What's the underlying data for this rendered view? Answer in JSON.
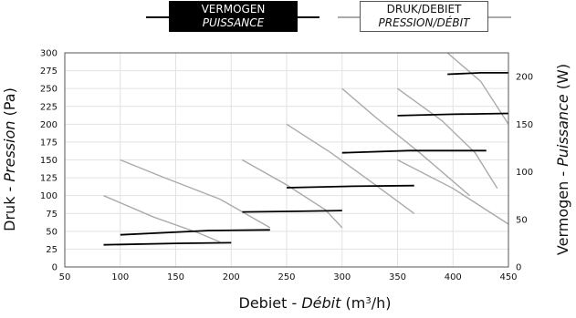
{
  "legend": {
    "power": {
      "line1": "VERMOGEN",
      "line2": "PUISSANCE",
      "color": "#000000"
    },
    "pressure": {
      "line1": "DRUK/DEBIET",
      "line2": "PRESSION/DÉBIT",
      "color": "#aaaaaa"
    }
  },
  "chart_data": {
    "type": "line",
    "xlabel": {
      "main": "Debiet - ",
      "italic": "Débit",
      "unit_pre": " (m",
      "unit_sup": "3",
      "unit_post": "/h)"
    },
    "ylabel_left": {
      "main": "Druk - ",
      "italic": "Pression",
      "unit": " (Pa)"
    },
    "ylabel_right": {
      "main": "Vermogen - ",
      "italic": "Puissance",
      "unit": " (W)"
    },
    "xlim": [
      50,
      450
    ],
    "ylim_left": [
      0,
      300
    ],
    "ylim_right": [
      0,
      225
    ],
    "x_ticks": [
      50,
      100,
      150,
      200,
      250,
      300,
      350,
      400,
      450
    ],
    "y_ticks_left": [
      0,
      25,
      50,
      75,
      100,
      125,
      150,
      175,
      200,
      225,
      250,
      275,
      300
    ],
    "y_ticks_right": [
      0,
      50,
      100,
      150,
      200
    ],
    "grid": true,
    "pressure_series": [
      {
        "points": [
          [
            85,
            100
          ],
          [
            130,
            70
          ],
          [
            170,
            48
          ],
          [
            190,
            35
          ]
        ]
      },
      {
        "points": [
          [
            100,
            150
          ],
          [
            140,
            125
          ],
          [
            190,
            95
          ],
          [
            235,
            55
          ]
        ]
      },
      {
        "points": [
          [
            210,
            150
          ],
          [
            250,
            115
          ],
          [
            285,
            80
          ],
          [
            300,
            55
          ]
        ]
      },
      {
        "points": [
          [
            250,
            200
          ],
          [
            290,
            160
          ],
          [
            330,
            115
          ],
          [
            365,
            75
          ]
        ]
      },
      {
        "points": [
          [
            300,
            250
          ],
          [
            330,
            210
          ],
          [
            370,
            160
          ],
          [
            415,
            100
          ]
        ]
      },
      {
        "points": [
          [
            350,
            250
          ],
          [
            390,
            205
          ],
          [
            420,
            160
          ],
          [
            440,
            110
          ]
        ]
      },
      {
        "points": [
          [
            395,
            300
          ],
          [
            425,
            260
          ],
          [
            450,
            200
          ]
        ]
      },
      {
        "points": [
          [
            350,
            150
          ],
          [
            400,
            110
          ],
          [
            450,
            60
          ]
        ]
      }
    ],
    "power_series": [
      {
        "points": [
          [
            85,
            23.3
          ],
          [
            150,
            24.8
          ],
          [
            200,
            25.5
          ]
        ]
      },
      {
        "points": [
          [
            100,
            33.8
          ],
          [
            140,
            36
          ],
          [
            180,
            38.3
          ],
          [
            235,
            39
          ]
        ]
      },
      {
        "points": [
          [
            210,
            57.8
          ],
          [
            260,
            58.5
          ],
          [
            300,
            59.3
          ]
        ]
      },
      {
        "points": [
          [
            250,
            83.3
          ],
          [
            310,
            84.8
          ],
          [
            365,
            85.5
          ]
        ]
      },
      {
        "points": [
          [
            300,
            120
          ],
          [
            360,
            122.3
          ],
          [
            430,
            122.3
          ]
        ]
      },
      {
        "points": [
          [
            350,
            159
          ],
          [
            400,
            160.5
          ],
          [
            450,
            161.3
          ]
        ]
      },
      {
        "points": [
          [
            395,
            202.5
          ],
          [
            425,
            204
          ],
          [
            450,
            204
          ]
        ]
      }
    ]
  }
}
